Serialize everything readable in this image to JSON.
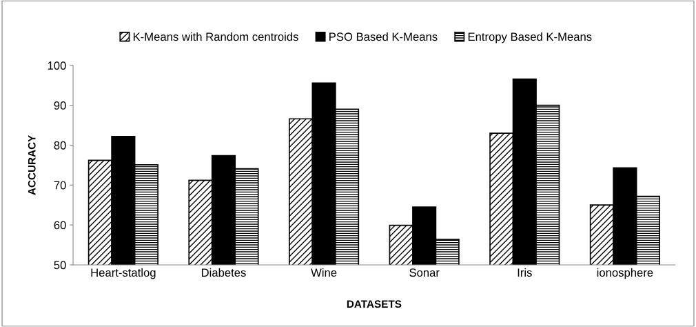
{
  "chart_data": {
    "type": "bar",
    "xlabel": "DATASETS",
    "ylabel": "ACCURACY",
    "categories": [
      "Heart-statlog",
      "Diabetes",
      "Wine",
      "Sonar",
      "Iris",
      "ionosphere"
    ],
    "series": [
      {
        "name": "K-Means with Random centroids",
        "color": "#000000",
        "values": [
          76.2,
          71.2,
          86.6,
          59.9,
          83.0,
          65.0
        ]
      },
      {
        "name": "PSO Based K-Means",
        "color": "#000000",
        "values": [
          82.2,
          77.4,
          95.6,
          64.5,
          96.6,
          74.3
        ]
      },
      {
        "name": "Entropy Based K-Means",
        "color": "#000000",
        "values": [
          75.1,
          74.1,
          89.0,
          56.4,
          90.0,
          67.2
        ]
      }
    ],
    "ylim": [
      50,
      100
    ],
    "yticks": [
      50,
      60,
      70,
      80,
      90,
      100
    ],
    "grid": false,
    "legend": "top"
  }
}
